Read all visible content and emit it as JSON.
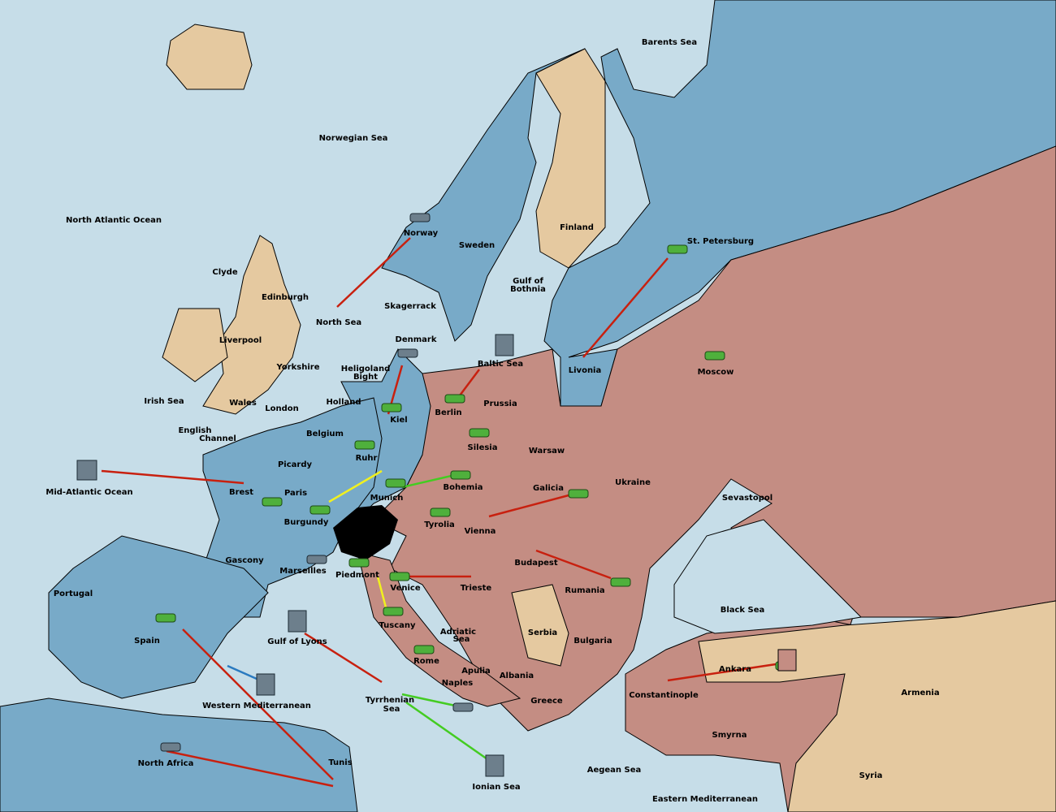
{
  "map": {
    "labels": [
      "Barents Sea",
      "Norwegian Sea",
      "North Atlantic Ocean",
      "Norway",
      "Sweden",
      "Finland",
      "St. Petersburg",
      "Clyde",
      "Edinburgh",
      "Gulf of",
      "Bothnia",
      "Skagerrack",
      "North Sea",
      "Liverpool",
      "Denmark",
      "Baltic Sea",
      "Yorkshire",
      "Heligoland",
      "Bight",
      "Livonia",
      "Moscow",
      "Irish Sea",
      "Holland",
      "Prussia",
      "Wales",
      "London",
      "Berlin",
      "Kiel",
      "Belgium",
      "English",
      "Channel",
      "Silesia",
      "Warsaw",
      "Ruhr",
      "Picardy",
      "Ukraine",
      "Mid-Atlantic Ocean",
      "Brest",
      "Paris",
      "Bohemia",
      "Galicia",
      "Munich",
      "Sevastopol",
      "Burgundy",
      "Tyrolia",
      "Vienna",
      "Gascony",
      "Budapest",
      "Marseilles",
      "Piedmont",
      "Venice",
      "Trieste",
      "Portugal",
      "Rumania",
      "Black Sea",
      "Tuscany",
      "Adriatic",
      "Sea",
      "Serbia",
      "Spain",
      "Gulf of Lyons",
      "Bulgaria",
      "Rome",
      "Apulia",
      "Ankara",
      "Albania",
      "Naples",
      "Armenia",
      "Constantinople",
      "Tyrrhenian",
      "Sea",
      "Greece",
      "Western Mediterranean",
      "Smyrna",
      "North Africa",
      "Tunis",
      "Aegean Sea",
      "Syria",
      "Ionian Sea",
      "Eastern Mediterranean"
    ]
  }
}
